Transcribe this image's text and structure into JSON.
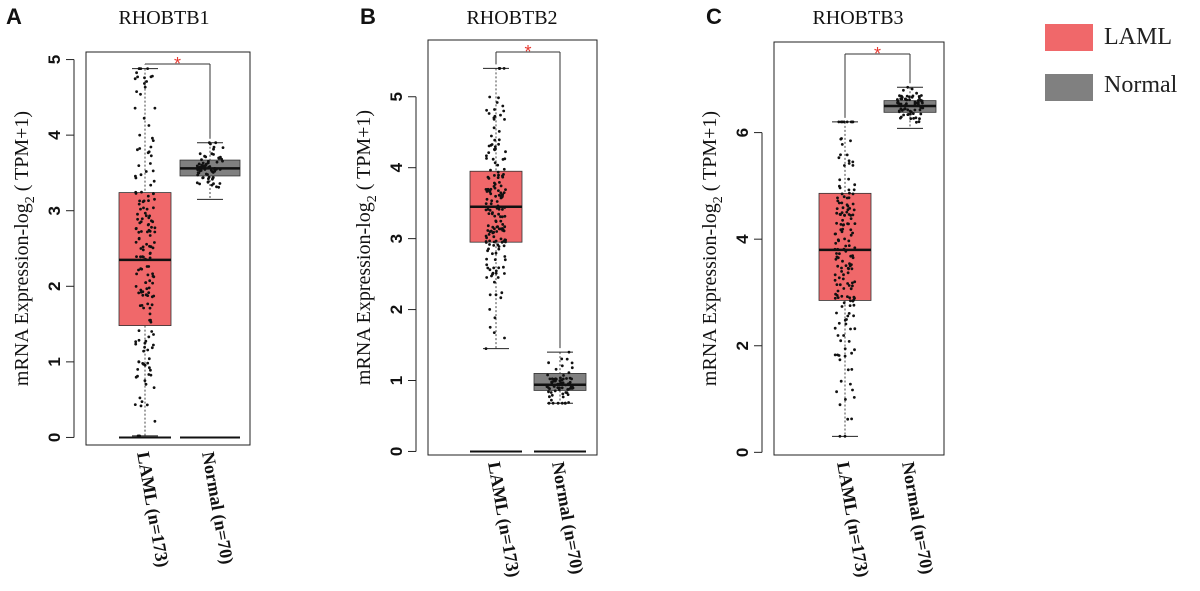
{
  "legend": {
    "position": "top-right",
    "items": [
      {
        "label": "LAML",
        "color": "#f0686a"
      },
      {
        "label": "Normal",
        "color": "#808080"
      }
    ]
  },
  "colors": {
    "laml": "#f0686a",
    "normal": "#808080",
    "significance": "#e8372f"
  },
  "chart_data": [
    {
      "type": "box",
      "panel": "A",
      "title": "RHOBTB1",
      "ylabel_main": "mRNA Expression-log",
      "ylabel_sub": "2",
      "ylabel_tail": " ( TPM+1)",
      "ylim": [
        -0.1,
        5.1
      ],
      "yticks": [
        0,
        1,
        2,
        3,
        4,
        5
      ],
      "significance": "*",
      "groups": [
        {
          "label": "LAML (n=173)",
          "key": "laml",
          "min": 0.02,
          "q1": 1.48,
          "median": 2.35,
          "q3": 3.24,
          "max": 4.88,
          "zeroline": 0.0
        },
        {
          "label": "Normal (n=70)",
          "key": "normal",
          "min": 3.15,
          "q1": 3.46,
          "median": 3.56,
          "q3": 3.67,
          "max": 3.9,
          "zeroline": 0.0
        }
      ]
    },
    {
      "type": "box",
      "panel": "B",
      "title": "RHOBTB2",
      "ylabel_main": "mRNA Expression-log",
      "ylabel_sub": "2",
      "ylabel_tail": " ( TPM+1)",
      "ylim": [
        -0.05,
        5.8
      ],
      "yticks": [
        0,
        1,
        2,
        3,
        4,
        5
      ],
      "significance": "*",
      "groups": [
        {
          "label": "LAML (n=173)",
          "key": "laml",
          "min": 1.45,
          "q1": 2.95,
          "median": 3.45,
          "q3": 3.95,
          "max": 5.4,
          "zeroline": 0.0
        },
        {
          "label": "Normal (n=70)",
          "key": "normal",
          "min": 0.68,
          "q1": 0.86,
          "median": 0.94,
          "q3": 1.1,
          "max": 1.4,
          "zeroline": 0.0
        }
      ]
    },
    {
      "type": "box",
      "panel": "C",
      "title": "RHOBTB3",
      "ylabel_main": "mRNA Expression-log",
      "ylabel_sub": "2",
      "ylabel_tail": " ( TPM+1)",
      "ylim": [
        -0.05,
        7.7
      ],
      "yticks": [
        0,
        2,
        4,
        6
      ],
      "significance": "*",
      "groups": [
        {
          "label": "LAML (n=173)",
          "key": "laml",
          "min": 0.3,
          "q1": 2.85,
          "median": 3.8,
          "q3": 4.86,
          "max": 6.2,
          "zeroline": null
        },
        {
          "label": "Normal (n=70)",
          "key": "normal",
          "min": 6.08,
          "q1": 6.38,
          "median": 6.5,
          "q3": 6.6,
          "max": 6.85,
          "zeroline": null
        }
      ]
    }
  ]
}
